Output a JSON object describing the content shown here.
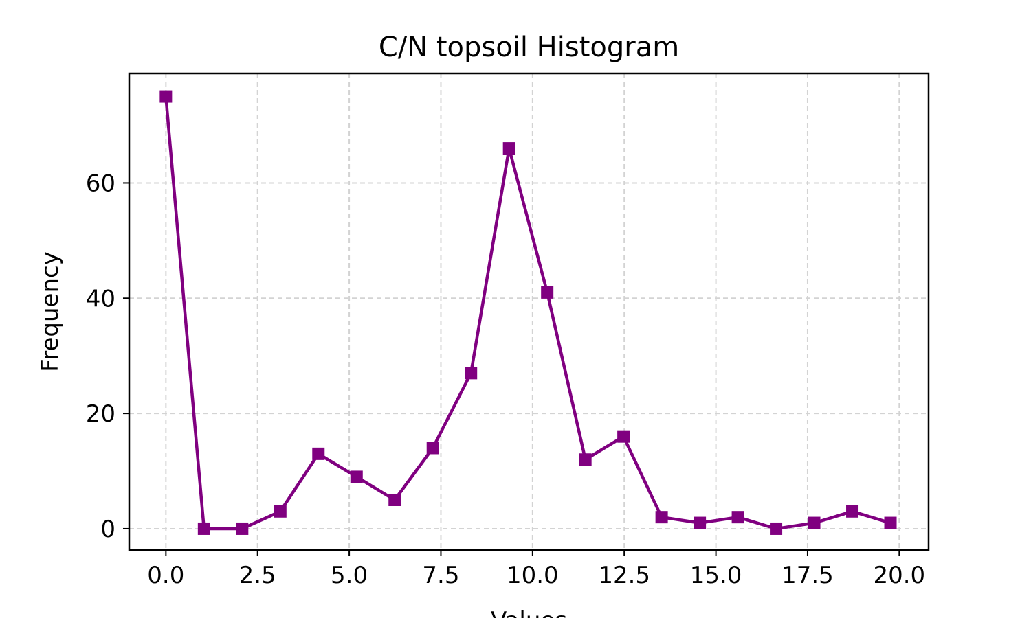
{
  "chart_data": {
    "type": "line",
    "title": "C/N topsoil Histogram",
    "xlabel": "Values",
    "ylabel": "Frequency",
    "xlim": [
      -1.0,
      20.8
    ],
    "ylim": [
      -3.7,
      79.0
    ],
    "xticks": [
      0.0,
      2.5,
      5.0,
      7.5,
      10.0,
      12.5,
      15.0,
      17.5,
      20.0
    ],
    "xtick_labels": [
      "0.0",
      "2.5",
      "5.0",
      "7.5",
      "10.0",
      "12.5",
      "15.0",
      "17.5",
      "20.0"
    ],
    "yticks": [
      0,
      20,
      40,
      60
    ],
    "ytick_labels": [
      "0",
      "20",
      "40",
      "60"
    ],
    "grid": true,
    "grid_style": "dashed",
    "marker": "square",
    "series": [
      {
        "color": "#800080",
        "x": [
          0.0,
          1.04,
          2.08,
          3.12,
          4.16,
          5.2,
          6.24,
          7.28,
          8.32,
          9.36,
          10.4,
          11.44,
          12.48,
          13.52,
          14.56,
          15.6,
          16.64,
          17.68,
          18.72,
          19.76
        ],
        "values": [
          75,
          0,
          0,
          3,
          13,
          9,
          5,
          14,
          27,
          66,
          41,
          12,
          16,
          2,
          1,
          2,
          0,
          1,
          3,
          1
        ]
      }
    ]
  }
}
